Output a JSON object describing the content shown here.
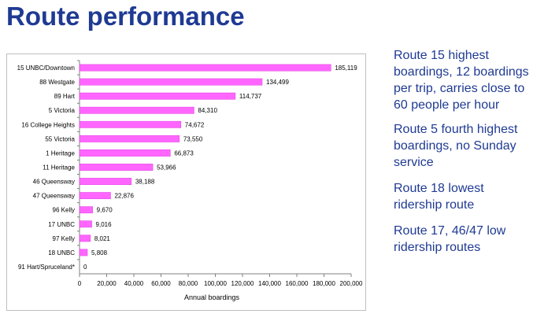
{
  "slide": {
    "title": "Route performance"
  },
  "notes": [
    "Route 15 highest boardings, 12 boardings per trip, carries close to 60 people per hour",
    "Route 5 fourth highest boardings, no Sunday service",
    "Route 18 lowest ridership route",
    "Route 17, 46/47  low ridership routes"
  ],
  "colors": {
    "bar": "#ff66ff",
    "bar_stroke": "#e040e0",
    "title": "#1f3a93",
    "text": "#1f3a93",
    "grid": "#d9d9d9"
  },
  "chart_data": {
    "type": "bar",
    "orientation": "horizontal",
    "categories": [
      "15 UNBC/Downtown",
      "88 Westgate",
      "89 Hart",
      "5  Victoria",
      "16 College Heights",
      "55 Victoria",
      "1 Heritage",
      "11 Heritage",
      "46 Queensway",
      "47 Queensway",
      "96 Kelly",
      "17 UNBC",
      "97 Kelly",
      "18 UNBC",
      "91 Hart/Spruceland*"
    ],
    "values": [
      185119,
      134499,
      114737,
      84310,
      74672,
      73550,
      66873,
      53966,
      38188,
      22876,
      9670,
      9016,
      8021,
      5808,
      0
    ],
    "value_labels": [
      "185,119",
      "134,499",
      "114,737",
      "84,310",
      "74,672",
      "73,550",
      "66,873",
      "53,966",
      "38,188",
      "22,876",
      "9,670",
      "9,016",
      "8,021",
      "5,808",
      "0"
    ],
    "xlabel": "Annual boardings",
    "ylabel": "",
    "xlim": [
      0,
      200000
    ],
    "xticks": [
      0,
      20000,
      40000,
      60000,
      80000,
      100000,
      120000,
      140000,
      160000,
      180000,
      200000
    ],
    "xtick_labels": [
      "0",
      "20,000",
      "40,000",
      "60,000",
      "80,000",
      "100,000",
      "120,000",
      "140,000",
      "160,000",
      "180,000",
      "200,000"
    ],
    "grid": false,
    "legend": "none"
  }
}
